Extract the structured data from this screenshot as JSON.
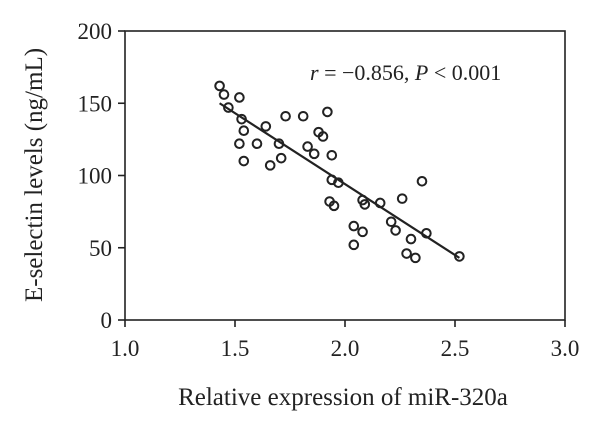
{
  "chart_data": {
    "type": "scatter",
    "xlabel": "Relative expression of miR-320a",
    "ylabel": "E-selectin levels (ng/mL)",
    "xlim": [
      1.0,
      3.0
    ],
    "ylim": [
      0,
      200
    ],
    "xticks": [
      "1.0",
      "1.5",
      "2.0",
      "2.5",
      "3.0"
    ],
    "yticks": [
      "0",
      "50",
      "100",
      "150",
      "200"
    ],
    "grid": false,
    "marker": "open-circle",
    "color": "#222222",
    "annotation": {
      "r_symbol": "r",
      "r_value": " = −0.856, ",
      "p_symbol": "P",
      "p_value": " < 0.001"
    },
    "trendline": {
      "x": [
        1.43,
        2.52
      ],
      "y": [
        150,
        43
      ]
    },
    "points": [
      {
        "x": 1.43,
        "y": 162
      },
      {
        "x": 1.45,
        "y": 156
      },
      {
        "x": 1.47,
        "y": 147
      },
      {
        "x": 1.52,
        "y": 154
      },
      {
        "x": 1.53,
        "y": 139
      },
      {
        "x": 1.54,
        "y": 131
      },
      {
        "x": 1.52,
        "y": 122
      },
      {
        "x": 1.54,
        "y": 110
      },
      {
        "x": 1.6,
        "y": 122
      },
      {
        "x": 1.64,
        "y": 134
      },
      {
        "x": 1.66,
        "y": 107
      },
      {
        "x": 1.7,
        "y": 122
      },
      {
        "x": 1.71,
        "y": 112
      },
      {
        "x": 1.73,
        "y": 141
      },
      {
        "x": 1.81,
        "y": 141
      },
      {
        "x": 1.83,
        "y": 120
      },
      {
        "x": 1.86,
        "y": 115
      },
      {
        "x": 1.88,
        "y": 130
      },
      {
        "x": 1.9,
        "y": 127
      },
      {
        "x": 1.92,
        "y": 144
      },
      {
        "x": 1.94,
        "y": 114
      },
      {
        "x": 1.94,
        "y": 97
      },
      {
        "x": 1.97,
        "y": 95
      },
      {
        "x": 1.93,
        "y": 82
      },
      {
        "x": 1.95,
        "y": 79
      },
      {
        "x": 2.04,
        "y": 65
      },
      {
        "x": 2.04,
        "y": 52
      },
      {
        "x": 2.08,
        "y": 61
      },
      {
        "x": 2.08,
        "y": 83
      },
      {
        "x": 2.09,
        "y": 80
      },
      {
        "x": 2.16,
        "y": 81
      },
      {
        "x": 2.21,
        "y": 68
      },
      {
        "x": 2.23,
        "y": 62
      },
      {
        "x": 2.26,
        "y": 84
      },
      {
        "x": 2.28,
        "y": 46
      },
      {
        "x": 2.3,
        "y": 56
      },
      {
        "x": 2.32,
        "y": 43
      },
      {
        "x": 2.35,
        "y": 96
      },
      {
        "x": 2.37,
        "y": 60
      },
      {
        "x": 2.52,
        "y": 44
      }
    ]
  }
}
